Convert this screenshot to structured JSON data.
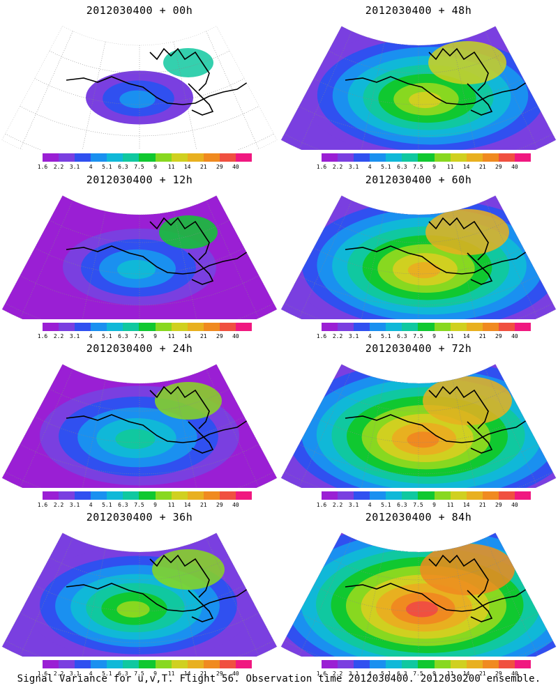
{
  "colorbar": {
    "labels": [
      "1.6",
      "2.2",
      "3.1",
      "4",
      "5.1",
      "6.3",
      "7.5",
      "9",
      "11",
      "14",
      "21",
      "29",
      "40"
    ],
    "colors": [
      "#9a1fd4",
      "#7a3fe0",
      "#3050f0",
      "#1a90f0",
      "#10b8d8",
      "#10c8a0",
      "#10c830",
      "#88d820",
      "#d0d020",
      "#e8b020",
      "#f08a20",
      "#f05040",
      "#f01880"
    ]
  },
  "panels": [
    {
      "title": "2012030400 + 00h",
      "intensity": 0.15
    },
    {
      "title": "2012030400 + 48h",
      "intensity": 0.65
    },
    {
      "title": "2012030400 + 12h",
      "intensity": 0.3
    },
    {
      "title": "2012030400 + 60h",
      "intensity": 0.75
    },
    {
      "title": "2012030400 + 24h",
      "intensity": 0.45
    },
    {
      "title": "2012030400 + 72h",
      "intensity": 0.85
    },
    {
      "title": "2012030400 + 36h",
      "intensity": 0.55
    },
    {
      "title": "2012030400 + 84h",
      "intensity": 0.95
    }
  ],
  "footer": "Signal Variance for u,v,T. Flight 56. Observation time 2012030400. 2012030200 ensemble."
}
